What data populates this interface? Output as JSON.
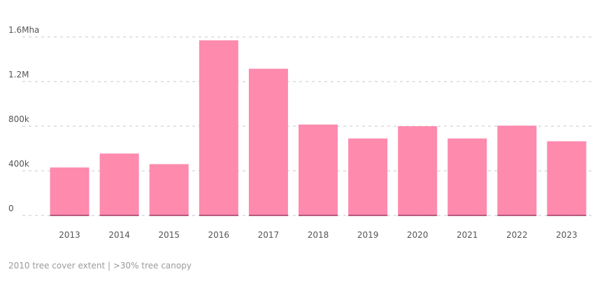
{
  "chart_data": {
    "type": "bar",
    "categories": [
      "2013",
      "2014",
      "2015",
      "2016",
      "2017",
      "2018",
      "2019",
      "2020",
      "2021",
      "2022",
      "2023"
    ],
    "values": [
      430000,
      555000,
      460000,
      1570000,
      1315000,
      815000,
      690000,
      800000,
      690000,
      805000,
      665000
    ],
    "ylim": [
      0,
      1600000
    ],
    "yticks": [
      {
        "value": 0,
        "label": "0"
      },
      {
        "value": 400000,
        "label": "400k"
      },
      {
        "value": 800000,
        "label": "800k"
      },
      {
        "value": 1200000,
        "label": "1.2M"
      },
      {
        "value": 1600000,
        "label": "1.6Mha"
      }
    ],
    "grid": true,
    "bar_color": "#fe8aae",
    "baseline_color": "#8b1e4a",
    "footnote": "2010 tree cover extent | >30% tree canopy"
  }
}
